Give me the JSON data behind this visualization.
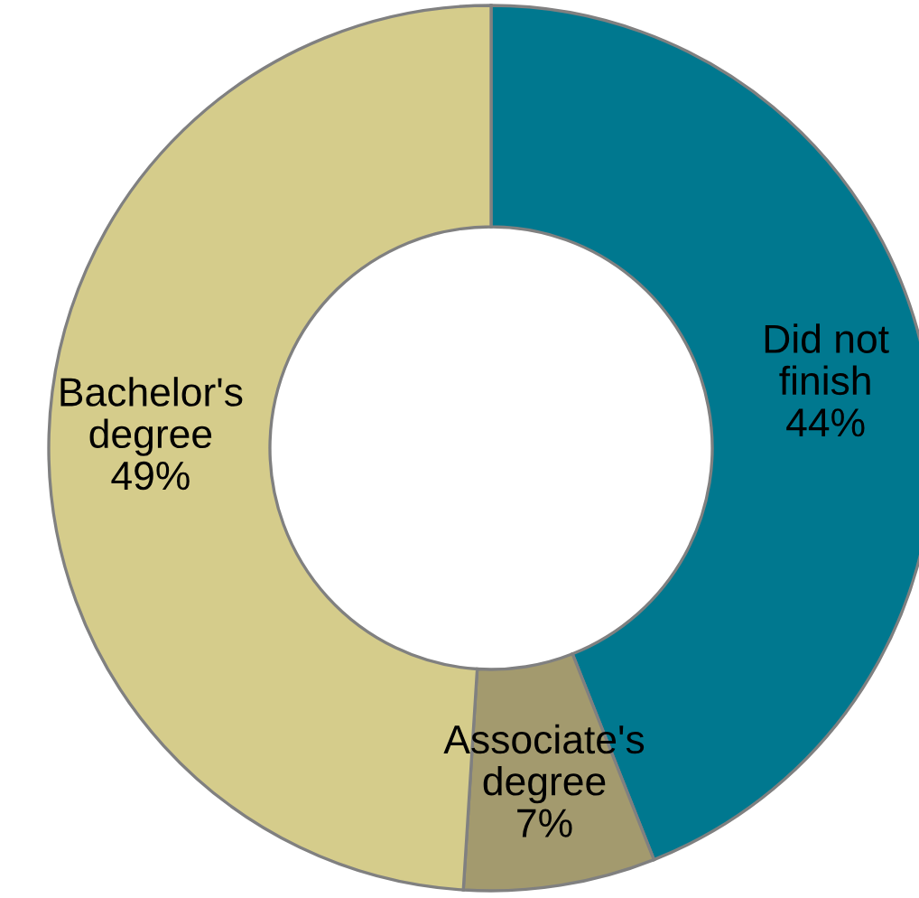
{
  "chart_data": {
    "type": "donut",
    "categories": [
      "Did not\nfinish",
      "Associate's\ndegree",
      "Bachelor's\ndegree"
    ],
    "values": [
      44,
      7,
      49
    ],
    "colors": [
      "#00788f",
      "#a39a6e",
      "#d5cc8b"
    ],
    "value_labels": [
      "44%",
      "7%",
      "49%"
    ],
    "legend": false
  }
}
